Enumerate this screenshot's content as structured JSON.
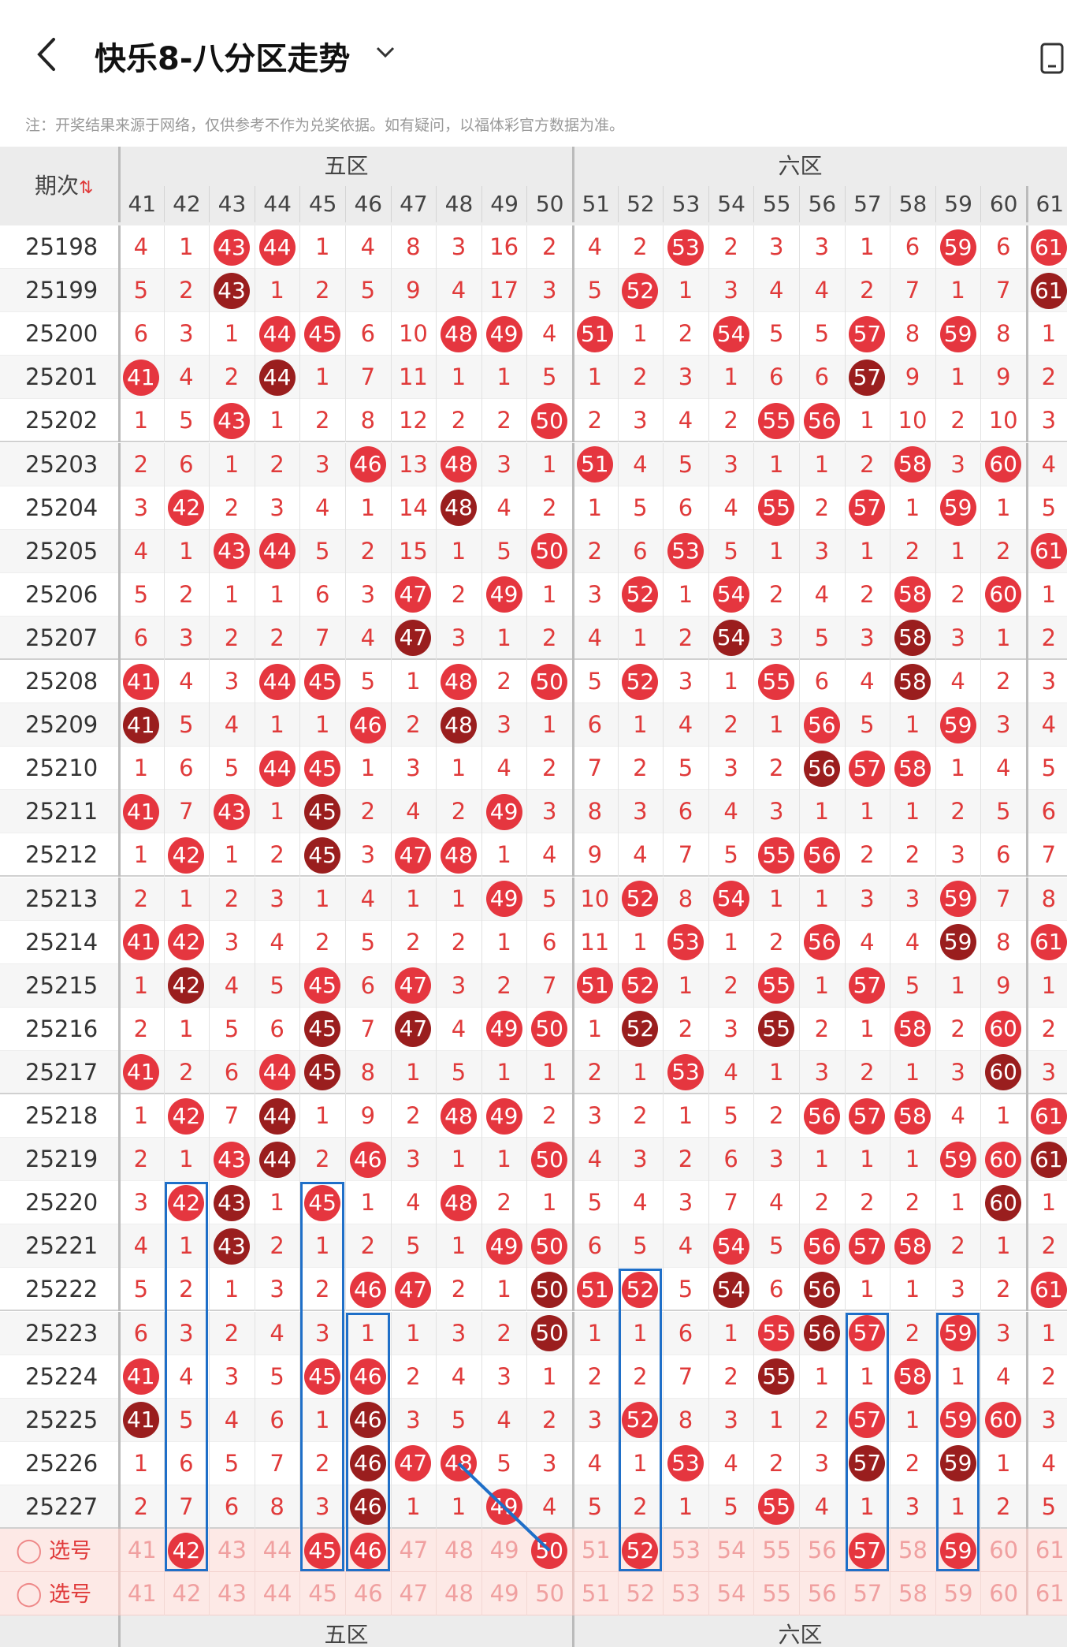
{
  "header": {
    "title": "快乐8-八分区走势",
    "back_icon": "chevron-left-icon",
    "dropdown_icon": "chevron-down-icon",
    "right_icon": "phone-icon"
  },
  "note": "注：开奖结果来源于网络，仅供参考不作为兑奖依据。如有疑问，以福体彩官方数据为准。",
  "table": {
    "issue_header": "期次",
    "sort_icon": "sort-arrows-icon",
    "zones": [
      {
        "name": "五区",
        "start": 41,
        "end": 50
      },
      {
        "name": "六区",
        "start": 51,
        "end": 60
      }
    ],
    "columns": [
      "41",
      "42",
      "43",
      "44",
      "45",
      "46",
      "47",
      "48",
      "49",
      "50",
      "51",
      "52",
      "53",
      "54",
      "55",
      "56",
      "57",
      "58",
      "59",
      "60",
      "61"
    ],
    "rows": [
      {
        "issue": "25198",
        "cells": [
          "4",
          "1",
          "43",
          "44",
          "1",
          "4",
          "8",
          "3",
          "16",
          "2",
          "4",
          "2",
          "53",
          "2",
          "3",
          "3",
          "1",
          "6",
          "59",
          "6",
          "61"
        ],
        "balls": "00110000000010000010 1"
      },
      {
        "issue": "25199",
        "cells": [
          "5",
          "2",
          "43",
          "1",
          "2",
          "5",
          "9",
          "4",
          "17",
          "3",
          "5",
          "52",
          "1",
          "3",
          "4",
          "4",
          "2",
          "7",
          "1",
          "7",
          "61"
        ]
      },
      {
        "issue": "25200",
        "cells": [
          "6",
          "3",
          "1",
          "44",
          "45",
          "6",
          "10",
          "48",
          "49",
          "4",
          "51",
          "1",
          "2",
          "54",
          "5",
          "5",
          "57",
          "8",
          "59",
          "8",
          "1"
        ]
      },
      {
        "issue": "25201",
        "cells": [
          "41",
          "4",
          "2",
          "44",
          "1",
          "7",
          "11",
          "1",
          "1",
          "5",
          "1",
          "2",
          "3",
          "1",
          "6",
          "6",
          "57",
          "9",
          "1",
          "9",
          "2"
        ]
      },
      {
        "issue": "25202",
        "cells": [
          "1",
          "5",
          "43",
          "1",
          "2",
          "8",
          "12",
          "2",
          "2",
          "50",
          "2",
          "3",
          "4",
          "2",
          "55",
          "56",
          "1",
          "10",
          "2",
          "10",
          "3"
        ]
      },
      {
        "issue": "25203",
        "cells": [
          "2",
          "6",
          "1",
          "2",
          "3",
          "46",
          "13",
          "48",
          "3",
          "1",
          "51",
          "4",
          "5",
          "3",
          "1",
          "1",
          "2",
          "58",
          "3",
          "60",
          "4"
        ]
      },
      {
        "issue": "25204",
        "cells": [
          "3",
          "42",
          "2",
          "3",
          "4",
          "1",
          "14",
          "48",
          "4",
          "2",
          "1",
          "5",
          "6",
          "4",
          "55",
          "2",
          "57",
          "1",
          "59",
          "1",
          "5"
        ]
      },
      {
        "issue": "25205",
        "cells": [
          "4",
          "1",
          "43",
          "44",
          "5",
          "2",
          "15",
          "1",
          "5",
          "50",
          "2",
          "6",
          "53",
          "5",
          "1",
          "3",
          "1",
          "2",
          "1",
          "2",
          "61"
        ]
      },
      {
        "issue": "25206",
        "cells": [
          "5",
          "2",
          "1",
          "1",
          "6",
          "3",
          "47",
          "2",
          "49",
          "1",
          "3",
          "52",
          "1",
          "54",
          "2",
          "4",
          "2",
          "58",
          "2",
          "60",
          "1"
        ]
      },
      {
        "issue": "25207",
        "cells": [
          "6",
          "3",
          "2",
          "2",
          "7",
          "4",
          "47",
          "3",
          "1",
          "2",
          "4",
          "1",
          "2",
          "54",
          "3",
          "5",
          "3",
          "58",
          "3",
          "1",
          "2"
        ]
      },
      {
        "issue": "25208",
        "cells": [
          "41",
          "4",
          "3",
          "44",
          "45",
          "5",
          "1",
          "48",
          "2",
          "50",
          "5",
          "52",
          "3",
          "1",
          "55",
          "6",
          "4",
          "58",
          "4",
          "2",
          "3"
        ]
      },
      {
        "issue": "25209",
        "cells": [
          "41",
          "5",
          "4",
          "1",
          "1",
          "46",
          "2",
          "48",
          "3",
          "1",
          "6",
          "1",
          "4",
          "2",
          "1",
          "56",
          "5",
          "1",
          "59",
          "3",
          "4"
        ]
      },
      {
        "issue": "25210",
        "cells": [
          "1",
          "6",
          "5",
          "44",
          "45",
          "1",
          "3",
          "1",
          "4",
          "2",
          "7",
          "2",
          "5",
          "3",
          "2",
          "56",
          "57",
          "58",
          "1",
          "4",
          "5"
        ]
      },
      {
        "issue": "25211",
        "cells": [
          "41",
          "7",
          "43",
          "1",
          "45",
          "2",
          "4",
          "2",
          "49",
          "3",
          "8",
          "3",
          "6",
          "4",
          "3",
          "1",
          "1",
          "1",
          "2",
          "5",
          "6"
        ]
      },
      {
        "issue": "25212",
        "cells": [
          "1",
          "42",
          "1",
          "2",
          "45",
          "3",
          "47",
          "48",
          "1",
          "4",
          "9",
          "4",
          "7",
          "5",
          "55",
          "56",
          "2",
          "2",
          "3",
          "6",
          "7"
        ]
      },
      {
        "issue": "25213",
        "cells": [
          "2",
          "1",
          "2",
          "3",
          "1",
          "4",
          "1",
          "1",
          "49",
          "5",
          "10",
          "52",
          "8",
          "54",
          "1",
          "1",
          "3",
          "3",
          "59",
          "7",
          "8"
        ]
      },
      {
        "issue": "25214",
        "cells": [
          "41",
          "42",
          "3",
          "4",
          "2",
          "5",
          "2",
          "2",
          "1",
          "6",
          "11",
          "1",
          "53",
          "1",
          "2",
          "56",
          "4",
          "4",
          "59",
          "8",
          "61"
        ]
      },
      {
        "issue": "25215",
        "cells": [
          "1",
          "42",
          "4",
          "5",
          "45",
          "6",
          "47",
          "3",
          "2",
          "7",
          "51",
          "52",
          "1",
          "2",
          "55",
          "1",
          "57",
          "5",
          "1",
          "9",
          "1"
        ]
      },
      {
        "issue": "25216",
        "cells": [
          "2",
          "1",
          "5",
          "6",
          "45",
          "7",
          "47",
          "4",
          "49",
          "50",
          "1",
          "52",
          "2",
          "3",
          "55",
          "2",
          "1",
          "58",
          "2",
          "60",
          "2"
        ]
      },
      {
        "issue": "25217",
        "cells": [
          "41",
          "2",
          "6",
          "44",
          "45",
          "8",
          "1",
          "5",
          "1",
          "1",
          "2",
          "1",
          "53",
          "4",
          "1",
          "3",
          "2",
          "1",
          "3",
          "60",
          "3"
        ]
      },
      {
        "issue": "25218",
        "cells": [
          "1",
          "42",
          "7",
          "44",
          "1",
          "9",
          "2",
          "48",
          "49",
          "2",
          "3",
          "2",
          "1",
          "5",
          "2",
          "56",
          "57",
          "58",
          "4",
          "1",
          "61"
        ]
      },
      {
        "issue": "25219",
        "cells": [
          "2",
          "1",
          "43",
          "44",
          "2",
          "46",
          "3",
          "1",
          "1",
          "50",
          "4",
          "3",
          "2",
          "6",
          "3",
          "1",
          "1",
          "1",
          "59",
          "60",
          "61"
        ]
      },
      {
        "issue": "25220",
        "cells": [
          "3",
          "42",
          "43",
          "1",
          "45",
          "1",
          "4",
          "48",
          "2",
          "1",
          "5",
          "4",
          "3",
          "7",
          "4",
          "2",
          "2",
          "2",
          "1",
          "60",
          "1"
        ]
      },
      {
        "issue": "25221",
        "cells": [
          "4",
          "1",
          "43",
          "2",
          "1",
          "2",
          "5",
          "1",
          "49",
          "50",
          "6",
          "5",
          "4",
          "54",
          "5",
          "56",
          "57",
          "58",
          "2",
          "1",
          "2"
        ]
      },
      {
        "issue": "25222",
        "cells": [
          "5",
          "2",
          "1",
          "3",
          "2",
          "46",
          "47",
          "2",
          "1",
          "50",
          "51",
          "52",
          "5",
          "54",
          "6",
          "56",
          "1",
          "1",
          "3",
          "2",
          "61"
        ]
      },
      {
        "issue": "25223",
        "cells": [
          "6",
          "3",
          "2",
          "4",
          "3",
          "1",
          "1",
          "3",
          "2",
          "50",
          "1",
          "1",
          "6",
          "1",
          "55",
          "56",
          "57",
          "2",
          "59",
          "3",
          "1"
        ]
      },
      {
        "issue": "25224",
        "cells": [
          "41",
          "4",
          "3",
          "5",
          "45",
          "46",
          "2",
          "4",
          "3",
          "1",
          "2",
          "2",
          "7",
          "2",
          "55",
          "1",
          "1",
          "58",
          "1",
          "4",
          "2"
        ]
      },
      {
        "issue": "25225",
        "cells": [
          "41",
          "5",
          "4",
          "6",
          "1",
          "46",
          "3",
          "5",
          "4",
          "2",
          "3",
          "52",
          "8",
          "3",
          "1",
          "2",
          "57",
          "1",
          "59",
          "60",
          "3"
        ]
      },
      {
        "issue": "25226",
        "cells": [
          "1",
          "6",
          "5",
          "7",
          "2",
          "46",
          "47",
          "48",
          "5",
          "3",
          "4",
          "1",
          "53",
          "4",
          "2",
          "3",
          "57",
          "2",
          "59",
          "1",
          "4"
        ]
      },
      {
        "issue": "25227",
        "cells": [
          "2",
          "7",
          "6",
          "8",
          "3",
          "46",
          "1",
          "1",
          "49",
          "4",
          "5",
          "2",
          "1",
          "5",
          "55",
          "4",
          "1",
          "3",
          "1",
          "2",
          "5"
        ]
      }
    ],
    "select_label": "选号",
    "select_rows": [
      {
        "picked": [
          "42",
          "45",
          "46",
          "50",
          "52",
          "57",
          "59"
        ]
      },
      {
        "picked": []
      }
    ],
    "footer_zones": [
      "五区",
      "六区"
    ]
  }
}
